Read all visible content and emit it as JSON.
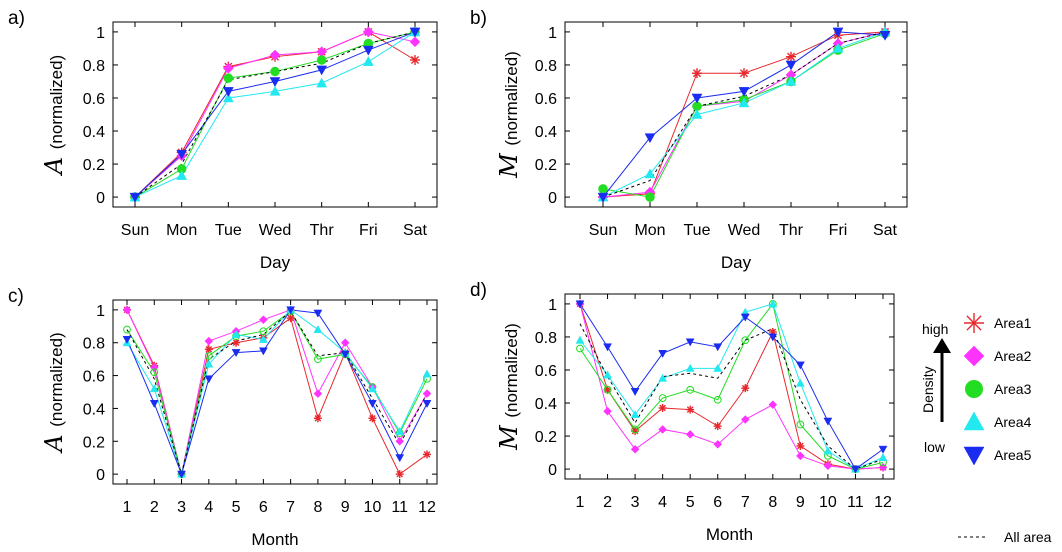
{
  "legend": {
    "high": "high",
    "low": "low",
    "density": "Density",
    "entries": [
      {
        "name": "Area1",
        "color": "#e8282d",
        "marker": "asterisk"
      },
      {
        "name": "Area2",
        "color": "#ff33ff",
        "marker": "diamond"
      },
      {
        "name": "Area3",
        "color": "#22dd22",
        "marker": "circle"
      },
      {
        "name": "Area4",
        "color": "#22e8f0",
        "marker": "triangle-up"
      },
      {
        "name": "Area5",
        "color": "#1a2cf0",
        "marker": "triangle-down"
      }
    ],
    "all_area": "All area"
  },
  "chart_data": [
    {
      "type": "line",
      "panel_label": "a)",
      "ylabel_symbol": "A",
      "ylabel_text": "(normalized)",
      "xlabel": "Day",
      "categories": [
        "Sun",
        "Mon",
        "Tue",
        "Wed",
        "Thr",
        "Fri",
        "Sat"
      ],
      "ylim": [
        -0.06,
        1.06
      ],
      "yticks": [
        "0",
        "0.2",
        "0.4",
        "0.6",
        "0.8",
        "1"
      ],
      "series": [
        {
          "key": "area1",
          "values": [
            0,
            0.27,
            0.79,
            0.85,
            0.88,
            1.0,
            0.83
          ]
        },
        {
          "key": "area2",
          "values": [
            0,
            0.25,
            0.78,
            0.86,
            0.88,
            1.0,
            0.94
          ]
        },
        {
          "key": "area3",
          "values": [
            0,
            0.17,
            0.72,
            0.76,
            0.83,
            0.93,
            1.0
          ]
        },
        {
          "key": "area4",
          "values": [
            0,
            0.13,
            0.6,
            0.64,
            0.69,
            0.82,
            1.0
          ]
        },
        {
          "key": "area5",
          "values": [
            0,
            0.26,
            0.64,
            0.7,
            0.77,
            0.89,
            1.0
          ]
        },
        {
          "key": "all",
          "values": [
            0,
            0.2,
            0.71,
            0.76,
            0.81,
            0.93,
            1.0
          ]
        }
      ]
    },
    {
      "type": "line",
      "panel_label": "b)",
      "ylabel_symbol": "M",
      "ylabel_text": "(normalized)",
      "xlabel": "Day",
      "categories": [
        "Sun",
        "Mon",
        "Tue",
        "Wed",
        "Thr",
        "Fri",
        "Sat"
      ],
      "ylim": [
        -0.06,
        1.06
      ],
      "yticks": [
        "0",
        "0.2",
        "0.4",
        "0.6",
        "0.8",
        "1"
      ],
      "series": [
        {
          "key": "area1",
          "values": [
            0,
            0.02,
            0.75,
            0.75,
            0.85,
            0.98,
            1.0
          ]
        },
        {
          "key": "area2",
          "values": [
            0,
            0.03,
            0.55,
            0.58,
            0.74,
            0.93,
            1.0
          ]
        },
        {
          "key": "area3",
          "values": [
            0.05,
            0,
            0.55,
            0.59,
            0.7,
            0.89,
            0.99
          ]
        },
        {
          "key": "area4",
          "values": [
            0,
            0.14,
            0.5,
            0.57,
            0.7,
            0.9,
            1.0
          ]
        },
        {
          "key": "area5",
          "values": [
            0,
            0.36,
            0.6,
            0.64,
            0.8,
            1.0,
            0.98
          ]
        },
        {
          "key": "all",
          "values": [
            0,
            0.1,
            0.55,
            0.61,
            0.74,
            0.93,
            1.0
          ]
        }
      ]
    },
    {
      "type": "line",
      "panel_label": "c)",
      "ylabel_symbol": "A",
      "ylabel_text": "(normalized)",
      "xlabel": "Month",
      "categories": [
        "1",
        "2",
        "3",
        "4",
        "5",
        "6",
        "7",
        "8",
        "9",
        "10",
        "11",
        "12"
      ],
      "ylim": [
        -0.06,
        1.06
      ],
      "yticks": [
        "0",
        "0.2",
        "0.4",
        "0.6",
        "0.8",
        "1"
      ],
      "series": [
        {
          "key": "area1",
          "values": [
            1.0,
            0.66,
            0,
            0.76,
            0.8,
            0.83,
            0.95,
            0.34,
            0.74,
            0.34,
            0.0,
            0.12
          ]
        },
        {
          "key": "area2",
          "values": [
            1.0,
            0.65,
            0,
            0.81,
            0.87,
            0.94,
            1.0,
            0.49,
            0.8,
            0.53,
            0.2,
            0.49
          ]
        },
        {
          "key": "area3",
          "values": [
            0.88,
            0.62,
            0,
            0.72,
            0.84,
            0.87,
            0.99,
            0.7,
            0.73,
            0.53,
            0.25,
            0.58
          ]
        },
        {
          "key": "area4",
          "values": [
            0.8,
            0.52,
            0,
            0.67,
            0.85,
            0.82,
            1.0,
            0.88,
            0.74,
            0.52,
            0.26,
            0.61
          ]
        },
        {
          "key": "area5",
          "values": [
            0.82,
            0.43,
            0,
            0.58,
            0.74,
            0.75,
            1.0,
            0.98,
            0.73,
            0.43,
            0.1,
            0.43
          ]
        },
        {
          "key": "all",
          "values": [
            0.88,
            0.58,
            0,
            0.7,
            0.81,
            0.85,
            0.99,
            0.72,
            0.74,
            0.46,
            0.18,
            0.49
          ]
        }
      ]
    },
    {
      "type": "line",
      "panel_label": "d)",
      "ylabel_symbol": "M",
      "ylabel_text": "(normalized)",
      "xlabel": "Month",
      "categories": [
        "1",
        "2",
        "3",
        "4",
        "5",
        "6",
        "7",
        "8",
        "9",
        "10",
        "11",
        "12"
      ],
      "ylim": [
        -0.06,
        1.06
      ],
      "yticks": [
        "0",
        "0.2",
        "0.4",
        "0.6",
        "0.8",
        "1"
      ],
      "series": [
        {
          "key": "area1",
          "values": [
            1.0,
            0.48,
            0.23,
            0.37,
            0.36,
            0.26,
            0.49,
            0.83,
            0.14,
            0.03,
            0.0,
            0.01
          ]
        },
        {
          "key": "area2",
          "values": [
            1.0,
            0.35,
            0.12,
            0.24,
            0.21,
            0.15,
            0.3,
            0.39,
            0.08,
            0.02,
            0.0,
            0.01
          ]
        },
        {
          "key": "area3",
          "values": [
            0.73,
            0.48,
            0.24,
            0.43,
            0.48,
            0.42,
            0.78,
            1.0,
            0.27,
            0.08,
            0.0,
            0.04
          ]
        },
        {
          "key": "area4",
          "values": [
            0.78,
            0.57,
            0.33,
            0.55,
            0.61,
            0.61,
            0.95,
            1.0,
            0.52,
            0.11,
            0.0,
            0.07
          ]
        },
        {
          "key": "area5",
          "values": [
            1.0,
            0.74,
            0.47,
            0.7,
            0.77,
            0.74,
            0.92,
            0.8,
            0.63,
            0.29,
            0.0,
            0.12
          ]
        },
        {
          "key": "all",
          "values": [
            0.88,
            0.56,
            0.28,
            0.56,
            0.58,
            0.55,
            0.78,
            0.85,
            0.42,
            0.14,
            0.0,
            0.06
          ]
        }
      ]
    }
  ]
}
